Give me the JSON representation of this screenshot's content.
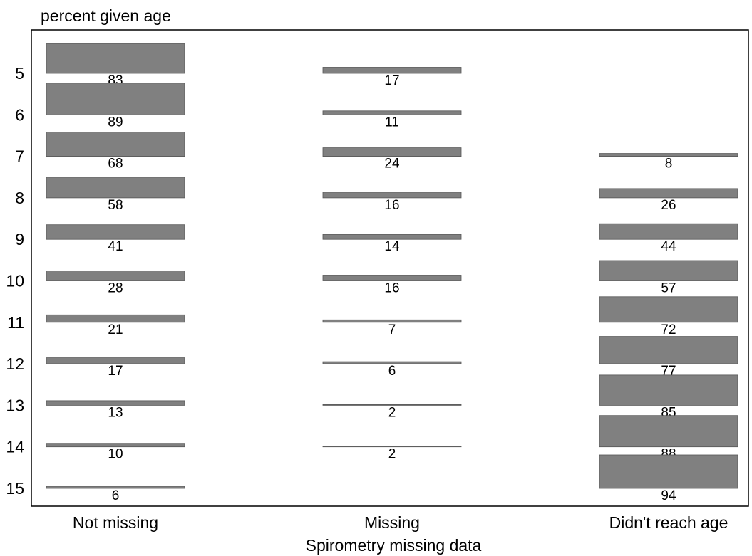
{
  "chart_data": {
    "type": "tabplot",
    "title": "percent given age",
    "x_label": "Spirometry missing data",
    "rows": [
      5,
      6,
      7,
      8,
      9,
      10,
      11,
      12,
      13,
      14,
      15
    ],
    "color": "#808080",
    "series": [
      {
        "name": "Not missing",
        "values": [
          83,
          89,
          68,
          58,
          41,
          28,
          21,
          17,
          13,
          10,
          6
        ]
      },
      {
        "name": "Missing",
        "values": [
          17,
          11,
          24,
          16,
          14,
          16,
          7,
          6,
          2,
          2,
          null
        ]
      },
      {
        "name": "Didn't reach age",
        "values": [
          null,
          null,
          8,
          26,
          44,
          57,
          72,
          77,
          85,
          88,
          94
        ]
      }
    ]
  }
}
